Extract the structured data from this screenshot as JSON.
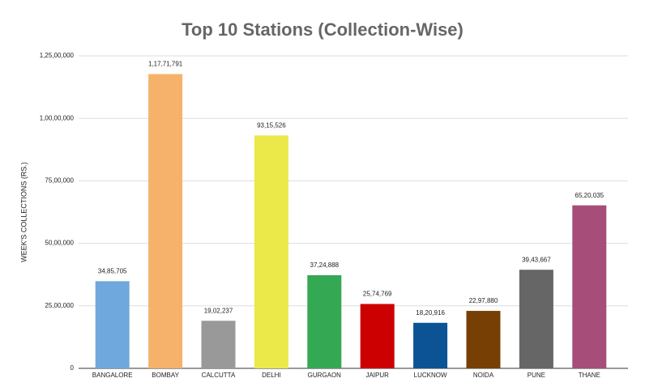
{
  "chart_data": {
    "type": "bar",
    "title": "Top 10 Stations (Collection-Wise)",
    "y_label": "WEEK'S COLLECTIONS (RS.)",
    "categories": [
      "BANGALORE",
      "BOMBAY",
      "CALCUTTA",
      "DELHI",
      "GURGAON",
      "JAIPUR",
      "LUCKNOW",
      "NOIDA",
      "PUNE",
      "THANE"
    ],
    "values": [
      3485705,
      11771791,
      1902237,
      9315526,
      3724888,
      2574769,
      1820916,
      2297880,
      3943667,
      6520035
    ],
    "value_labels": [
      "34,85,705",
      "1,17,71,791",
      "19,02,237",
      "93,15,526",
      "37,24,888",
      "25,74,769",
      "18,20,916",
      "22,97,880",
      "39,43,667",
      "65,20,035"
    ],
    "colors": [
      "#6fa8dc",
      "#f6b26b",
      "#999999",
      "#ebe84a",
      "#34a853",
      "#cc0000",
      "#0b5394",
      "#783f04",
      "#666666",
      "#a64d79"
    ],
    "ylim": [
      0,
      12500000
    ],
    "yticks": [
      0,
      {
        "value": 2500000,
        "label": "25,00,000"
      },
      {
        "value": 5000000,
        "label": "50,00,000"
      },
      {
        "value": 7500000,
        "label": "75,00,000"
      },
      {
        "value": 10000000,
        "label": "1,00,00,000"
      },
      {
        "value": 12500000,
        "label": "1,25,00,000"
      }
    ],
    "grid": true
  }
}
